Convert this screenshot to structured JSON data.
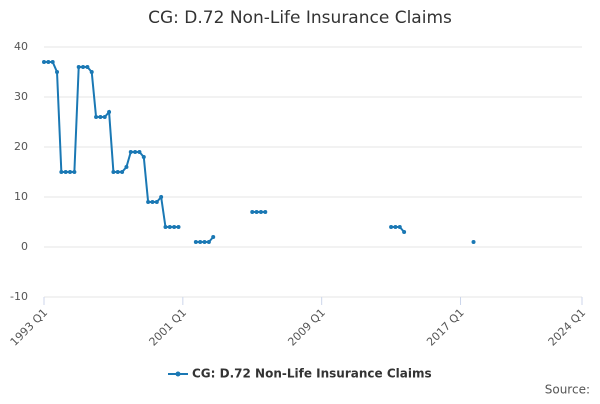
{
  "chart_data": {
    "type": "line",
    "title": "CG: D.72 Non-Life Insurance Claims",
    "categories": [
      "1993 Q1",
      null,
      null,
      null,
      null,
      null,
      null,
      null,
      null,
      null,
      null,
      null,
      null,
      null,
      null,
      null,
      null,
      null,
      null,
      null,
      null,
      null,
      null,
      null,
      null,
      null,
      null,
      null,
      null,
      null,
      null,
      null,
      "2001 Q1",
      null,
      null,
      null,
      null,
      null,
      null,
      null,
      null,
      null,
      null,
      null,
      null,
      null,
      null,
      null,
      null,
      null,
      null,
      null,
      null,
      null,
      null,
      null,
      null,
      null,
      null,
      null,
      null,
      null,
      null,
      null,
      "2009 Q1",
      null,
      null,
      null,
      null,
      null,
      null,
      null,
      null,
      null,
      null,
      null,
      null,
      null,
      null,
      null,
      null,
      null,
      null,
      null,
      null,
      null,
      null,
      null,
      null,
      null,
      null,
      null,
      null,
      null,
      null,
      null,
      "2017 Q1",
      null,
      null,
      null,
      null,
      null,
      null,
      null,
      null,
      null,
      null,
      null,
      null,
      null,
      null,
      null,
      null,
      null,
      null,
      null,
      null,
      null,
      null,
      null,
      null,
      null,
      null,
      null,
      "2024 Q1"
    ],
    "series": [
      {
        "name": "CG: D.72 Non-Life Insurance Claims",
        "color": "#1a78b4",
        "values": [
          37,
          37,
          37,
          35,
          15,
          15,
          15,
          15,
          36,
          36,
          36,
          35,
          26,
          26,
          26,
          27,
          15,
          15,
          15,
          16,
          19,
          19,
          19,
          18,
          9,
          9,
          9,
          10,
          4,
          4,
          4,
          4,
          null,
          null,
          null,
          1,
          1,
          1,
          1,
          2,
          null,
          null,
          null,
          null,
          null,
          null,
          null,
          null,
          7,
          7,
          7,
          7,
          null,
          null,
          null,
          null,
          null,
          null,
          null,
          null,
          null,
          null,
          null,
          null,
          null,
          null,
          null,
          null,
          null,
          null,
          null,
          null,
          null,
          null,
          null,
          null,
          null,
          null,
          null,
          null,
          4,
          4,
          4,
          3,
          null,
          null,
          null,
          null,
          null,
          null,
          null,
          null,
          null,
          null,
          null,
          null,
          null,
          null,
          null,
          1,
          null,
          null,
          null,
          null,
          null,
          null,
          null,
          null,
          null,
          null,
          null,
          null,
          null,
          null,
          null,
          null,
          null,
          null,
          null,
          null,
          null,
          null,
          null,
          null,
          null
        ]
      }
    ],
    "ylim": [
      -10,
      40
    ],
    "yticks": [
      -10,
      0,
      10,
      20,
      30,
      40
    ],
    "grid": true,
    "source": "Source:"
  }
}
